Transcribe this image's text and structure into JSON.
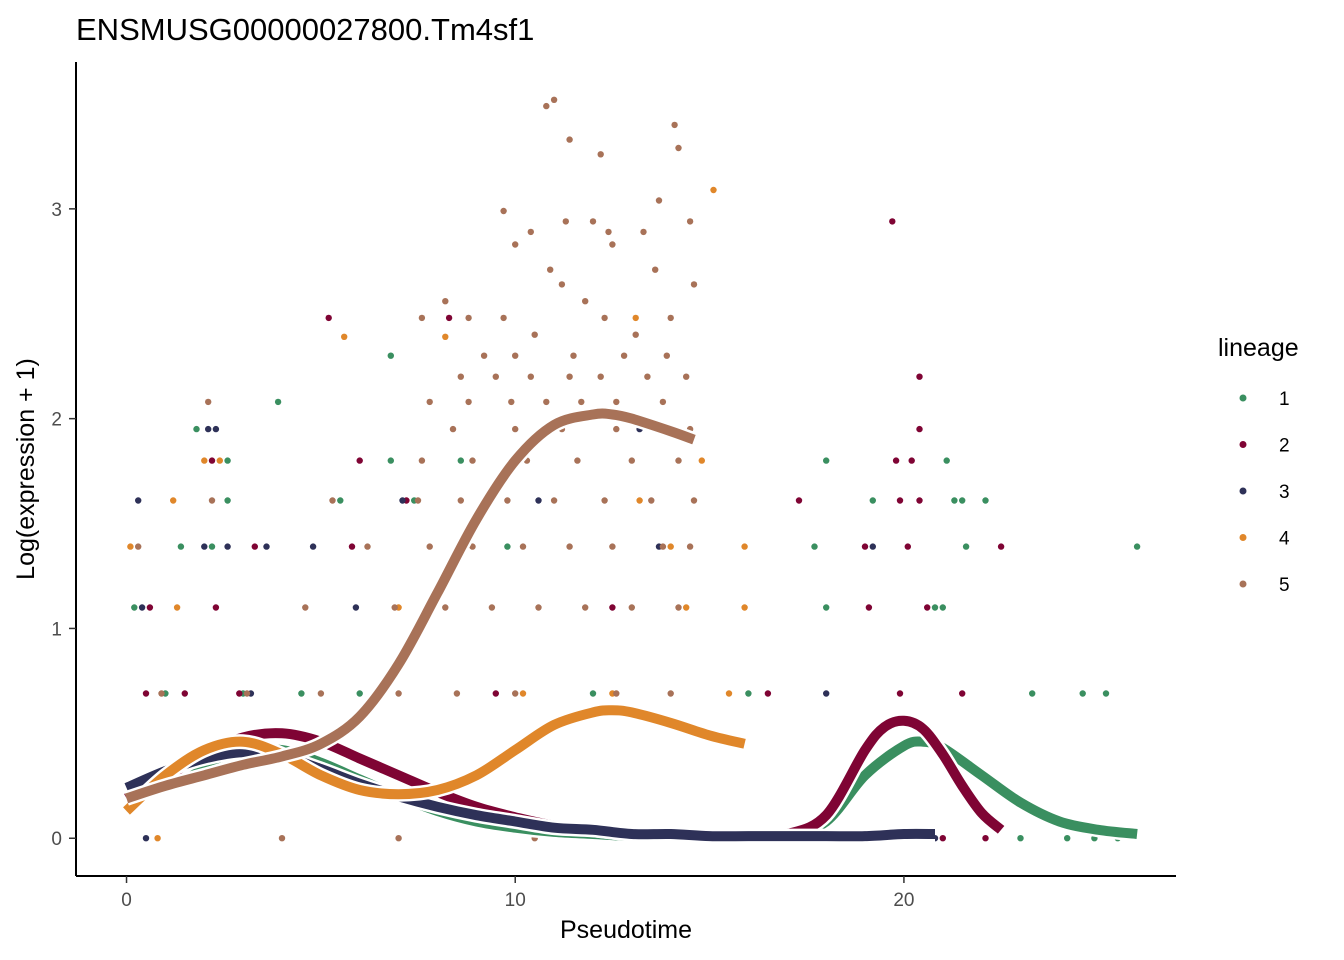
{
  "chart_data": {
    "type": "scatter",
    "title": "ENSMUSG00000027800.Tm4sf1",
    "xlabel": "Pseudotime",
    "ylabel": "Log(expression + 1)",
    "xlim": [
      -1.3,
      27.0
    ],
    "ylim": [
      -0.18,
      3.7
    ],
    "x_ticks": [
      0,
      10,
      20
    ],
    "y_ticks": [
      0,
      1,
      2,
      3
    ],
    "grid": false,
    "legend": {
      "title": "lineage",
      "position": "right",
      "entries": [
        "1",
        "2",
        "3",
        "4",
        "5"
      ]
    },
    "series": [
      {
        "name": "1",
        "color": "#3a8f60",
        "curve": {
          "x": [
            0,
            1,
            2,
            3,
            4,
            5,
            6,
            7,
            8,
            9,
            10,
            11,
            12,
            13,
            14,
            15,
            16,
            17,
            18,
            19,
            20,
            20.5,
            21,
            22,
            23,
            24,
            25,
            26
          ],
          "y": [
            0.2,
            0.28,
            0.36,
            0.41,
            0.42,
            0.36,
            0.28,
            0.2,
            0.13,
            0.08,
            0.05,
            0.03,
            0.02,
            0.01,
            0.01,
            0.01,
            0.01,
            0.02,
            0.08,
            0.3,
            0.44,
            0.46,
            0.43,
            0.3,
            0.17,
            0.08,
            0.04,
            0.02
          ]
        },
        "points": [
          [
            1.8,
            1.95
          ],
          [
            2.6,
            1.8
          ],
          [
            2.6,
            1.61
          ],
          [
            1.4,
            1.39
          ],
          [
            2.2,
            1.39
          ],
          [
            3.9,
            2.08
          ],
          [
            5.5,
            1.61
          ],
          [
            6.8,
            2.3
          ],
          [
            6.8,
            1.8
          ],
          [
            8.6,
            1.8
          ],
          [
            7.4,
            1.61
          ],
          [
            9.8,
            1.39
          ],
          [
            18.0,
            1.8
          ],
          [
            19.2,
            1.61
          ],
          [
            21.1,
            1.8
          ],
          [
            21.3,
            1.61
          ],
          [
            21.5,
            1.61
          ],
          [
            22.1,
            1.61
          ],
          [
            17.7,
            1.39
          ],
          [
            21.6,
            1.39
          ],
          [
            18.0,
            1.1
          ],
          [
            21.0,
            1.1
          ],
          [
            23.3,
            0.69
          ],
          [
            24.6,
            0.69
          ],
          [
            25.2,
            0.69
          ],
          [
            26.0,
            1.39
          ],
          [
            25.5,
            0.0
          ],
          [
            24.9,
            0.0
          ],
          [
            24.2,
            0.0
          ],
          [
            23.0,
            0.0
          ],
          [
            6.0,
            0.69
          ],
          [
            4.5,
            0.69
          ],
          [
            3.0,
            0.69
          ],
          [
            1.0,
            0.69
          ],
          [
            12.0,
            0.69
          ],
          [
            16.0,
            0.69
          ],
          [
            0.2,
            1.1
          ],
          [
            20.8,
            1.1
          ]
        ]
      },
      {
        "name": "2",
        "color": "#7f0434",
        "curve": {
          "x": [
            0,
            1,
            2,
            3,
            4,
            5,
            6,
            7,
            8,
            9,
            10,
            11,
            12,
            13,
            14,
            15,
            16,
            17,
            18,
            19,
            19.5,
            20,
            20.5,
            21,
            21.5,
            22,
            22.5
          ],
          "y": [
            0.19,
            0.29,
            0.4,
            0.48,
            0.5,
            0.46,
            0.38,
            0.3,
            0.22,
            0.15,
            0.1,
            0.06,
            0.04,
            0.02,
            0.01,
            0.01,
            0.01,
            0.02,
            0.11,
            0.42,
            0.53,
            0.56,
            0.52,
            0.4,
            0.25,
            0.12,
            0.04
          ]
        },
        "points": [
          [
            5.2,
            2.48
          ],
          [
            8.3,
            2.48
          ],
          [
            6.0,
            1.8
          ],
          [
            7.2,
            1.61
          ],
          [
            5.8,
            1.39
          ],
          [
            2.3,
            1.1
          ],
          [
            1.5,
            0.69
          ],
          [
            19.7,
            2.94
          ],
          [
            20.4,
            2.2
          ],
          [
            20.4,
            1.95
          ],
          [
            19.8,
            1.8
          ],
          [
            20.2,
            1.8
          ],
          [
            17.3,
            1.61
          ],
          [
            19.9,
            1.61
          ],
          [
            20.4,
            1.61
          ],
          [
            19.0,
            1.39
          ],
          [
            20.1,
            1.39
          ],
          [
            22.5,
            1.39
          ],
          [
            19.1,
            1.1
          ],
          [
            20.6,
            1.1
          ],
          [
            19.9,
            0.69
          ],
          [
            21.5,
            0.69
          ],
          [
            16.5,
            0.69
          ],
          [
            9.5,
            0.69
          ],
          [
            2.9,
            0.69
          ],
          [
            0.5,
            0.69
          ],
          [
            21.0,
            0.0
          ],
          [
            22.1,
            0.0
          ],
          [
            2.2,
            1.8
          ],
          [
            0.6,
            1.1
          ],
          [
            12.5,
            1.1
          ],
          [
            3.3,
            1.39
          ]
        ]
      },
      {
        "name": "3",
        "color": "#2e3158",
        "curve": {
          "x": [
            0,
            1,
            2,
            3,
            4,
            5,
            6,
            7,
            8,
            9,
            10,
            11,
            12,
            13,
            14,
            15,
            16,
            17,
            18,
            19,
            20,
            20.8
          ],
          "y": [
            0.24,
            0.32,
            0.38,
            0.41,
            0.39,
            0.33,
            0.26,
            0.2,
            0.15,
            0.11,
            0.08,
            0.05,
            0.04,
            0.02,
            0.02,
            0.01,
            0.01,
            0.01,
            0.01,
            0.01,
            0.02,
            0.02
          ]
        },
        "points": [
          [
            0.3,
            1.61
          ],
          [
            2.1,
            1.95
          ],
          [
            2.3,
            1.95
          ],
          [
            2.0,
            1.39
          ],
          [
            2.6,
            1.39
          ],
          [
            3.6,
            1.39
          ],
          [
            4.8,
            1.39
          ],
          [
            7.1,
            1.61
          ],
          [
            10.6,
            1.61
          ],
          [
            13.2,
            1.95
          ],
          [
            13.7,
            1.39
          ],
          [
            0.4,
            1.1
          ],
          [
            3.2,
            0.69
          ],
          [
            5.9,
            1.1
          ],
          [
            18.0,
            0.69
          ],
          [
            19.2,
            1.39
          ],
          [
            20.8,
            0.0
          ],
          [
            0.5,
            0.0
          ]
        ]
      },
      {
        "name": "4",
        "color": "#e0872a",
        "curve": {
          "x": [
            0,
            1,
            2,
            3,
            4,
            5,
            6,
            7,
            8,
            9,
            10,
            11,
            12,
            12.5,
            13,
            14,
            15,
            15.9
          ],
          "y": [
            0.13,
            0.3,
            0.42,
            0.46,
            0.4,
            0.3,
            0.23,
            0.21,
            0.23,
            0.3,
            0.42,
            0.54,
            0.6,
            0.61,
            0.6,
            0.55,
            0.49,
            0.45
          ]
        },
        "points": [
          [
            5.6,
            2.39
          ],
          [
            8.2,
            2.39
          ],
          [
            1.2,
            1.61
          ],
          [
            2.4,
            1.8
          ],
          [
            2.0,
            1.8
          ],
          [
            15.1,
            3.09
          ],
          [
            13.1,
            2.48
          ],
          [
            14.8,
            1.8
          ],
          [
            13.2,
            1.61
          ],
          [
            14.0,
            1.39
          ],
          [
            15.9,
            1.39
          ],
          [
            15.9,
            1.1
          ],
          [
            14.4,
            1.1
          ],
          [
            12.5,
            0.69
          ],
          [
            15.5,
            0.69
          ],
          [
            1.3,
            1.1
          ],
          [
            0.1,
            1.39
          ],
          [
            7.0,
            1.1
          ],
          [
            10.2,
            0.69
          ],
          [
            0.8,
            0.0
          ]
        ]
      },
      {
        "name": "5",
        "color": "#a87258",
        "curve": {
          "x": [
            0,
            1,
            2,
            3,
            4,
            5,
            6,
            7,
            8,
            9,
            10,
            11,
            12,
            12.5,
            13,
            14,
            14.6
          ],
          "y": [
            0.19,
            0.25,
            0.3,
            0.35,
            0.39,
            0.45,
            0.58,
            0.83,
            1.17,
            1.52,
            1.8,
            1.97,
            2.02,
            2.02,
            2.0,
            1.94,
            1.9
          ],
          "range": [
            0,
            14.6
          ]
        },
        "points": [
          [
            10.8,
            3.49
          ],
          [
            11.0,
            3.52
          ],
          [
            11.4,
            3.33
          ],
          [
            12.2,
            3.26
          ],
          [
            14.1,
            3.4
          ],
          [
            14.2,
            3.29
          ],
          [
            9.7,
            2.99
          ],
          [
            10.4,
            2.89
          ],
          [
            11.3,
            2.94
          ],
          [
            12.0,
            2.94
          ],
          [
            12.4,
            2.89
          ],
          [
            13.3,
            2.89
          ],
          [
            13.7,
            3.04
          ],
          [
            14.5,
            2.94
          ],
          [
            10.0,
            2.83
          ],
          [
            11.2,
            2.64
          ],
          [
            12.5,
            2.83
          ],
          [
            13.6,
            2.71
          ],
          [
            10.9,
            2.71
          ],
          [
            14.6,
            2.64
          ],
          [
            8.2,
            2.56
          ],
          [
            8.8,
            2.48
          ],
          [
            9.7,
            2.48
          ],
          [
            10.5,
            2.4
          ],
          [
            11.8,
            2.56
          ],
          [
            12.3,
            2.48
          ],
          [
            13.1,
            2.4
          ],
          [
            14.0,
            2.48
          ],
          [
            7.6,
            2.48
          ],
          [
            9.2,
            2.3
          ],
          [
            10.0,
            2.3
          ],
          [
            11.5,
            2.3
          ],
          [
            12.8,
            2.3
          ],
          [
            13.9,
            2.3
          ],
          [
            8.6,
            2.2
          ],
          [
            9.5,
            2.2
          ],
          [
            10.4,
            2.2
          ],
          [
            11.4,
            2.2
          ],
          [
            12.2,
            2.2
          ],
          [
            13.4,
            2.2
          ],
          [
            14.4,
            2.2
          ],
          [
            7.8,
            2.08
          ],
          [
            8.8,
            2.08
          ],
          [
            9.9,
            2.08
          ],
          [
            10.8,
            2.08
          ],
          [
            11.7,
            2.08
          ],
          [
            12.6,
            2.08
          ],
          [
            13.8,
            2.08
          ],
          [
            8.4,
            1.95
          ],
          [
            10.0,
            1.95
          ],
          [
            11.2,
            1.95
          ],
          [
            12.6,
            1.95
          ],
          [
            14.5,
            1.95
          ],
          [
            7.6,
            1.8
          ],
          [
            8.9,
            1.8
          ],
          [
            10.3,
            1.8
          ],
          [
            11.6,
            1.8
          ],
          [
            13.0,
            1.8
          ],
          [
            14.2,
            1.8
          ],
          [
            5.3,
            1.61
          ],
          [
            7.5,
            1.61
          ],
          [
            8.6,
            1.61
          ],
          [
            9.8,
            1.61
          ],
          [
            11.0,
            1.61
          ],
          [
            12.3,
            1.61
          ],
          [
            13.5,
            1.61
          ],
          [
            14.6,
            1.61
          ],
          [
            2.1,
            2.08
          ],
          [
            2.2,
            1.61
          ],
          [
            6.2,
            1.39
          ],
          [
            7.8,
            1.39
          ],
          [
            8.9,
            1.39
          ],
          [
            10.2,
            1.39
          ],
          [
            11.4,
            1.39
          ],
          [
            12.5,
            1.39
          ],
          [
            13.8,
            1.39
          ],
          [
            14.5,
            1.39
          ],
          [
            4.6,
            1.1
          ],
          [
            6.9,
            1.1
          ],
          [
            8.2,
            1.1
          ],
          [
            9.4,
            1.1
          ],
          [
            10.6,
            1.1
          ],
          [
            11.8,
            1.1
          ],
          [
            13.0,
            1.1
          ],
          [
            14.2,
            1.1
          ],
          [
            3.1,
            0.69
          ],
          [
            5.0,
            0.69
          ],
          [
            7.0,
            0.69
          ],
          [
            8.5,
            0.69
          ],
          [
            10.0,
            0.69
          ],
          [
            12.6,
            0.69
          ],
          [
            14.0,
            0.69
          ],
          [
            4.0,
            0.0
          ],
          [
            7.0,
            0.0
          ],
          [
            10.5,
            0.0
          ],
          [
            0.3,
            1.39
          ],
          [
            0.9,
            0.69
          ]
        ]
      }
    ]
  }
}
